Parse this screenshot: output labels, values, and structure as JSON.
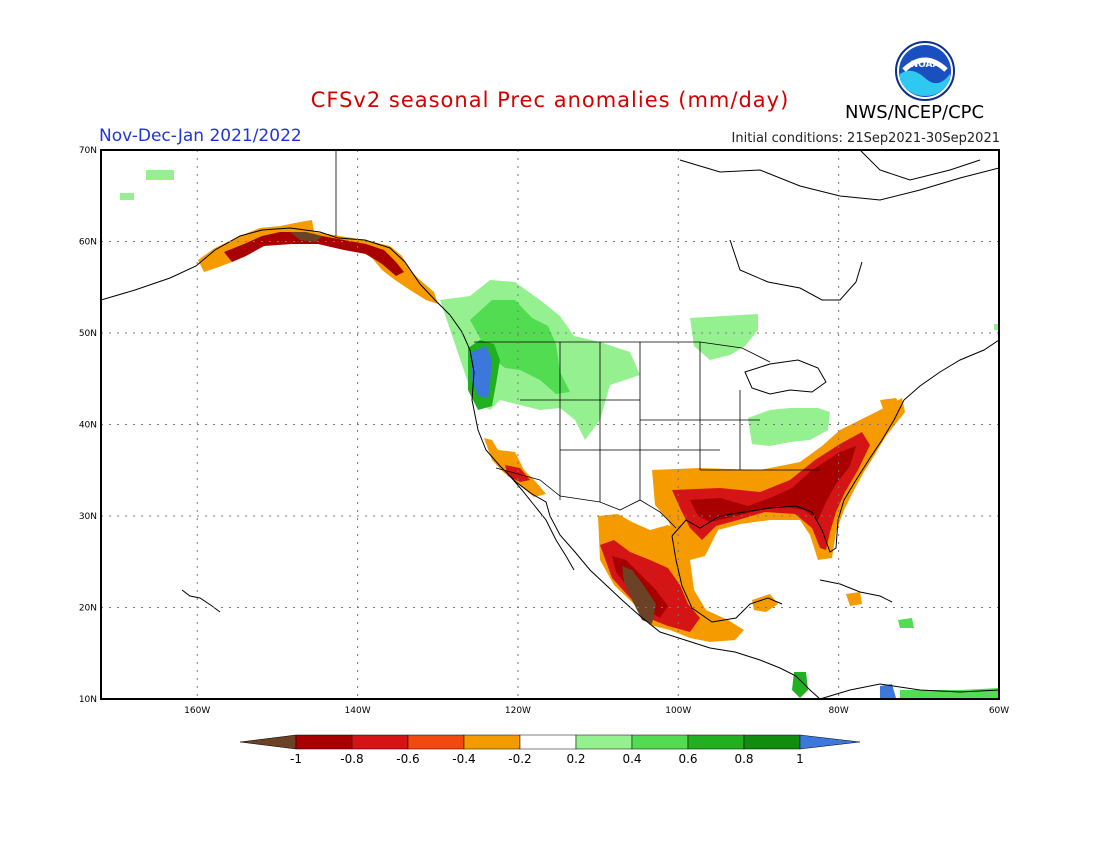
{
  "header": {
    "title": "CFSv2 seasonal Prec anomalies (mm/day)",
    "season": "Nov-Dec-Jan 2021/2022",
    "initial_conditions": "Initial conditions: 21Sep2021-30Sep2021",
    "agency": "NWS/NCEP/CPC",
    "logo_text": "NOAA"
  },
  "map": {
    "lon_range": [
      -172,
      -60
    ],
    "lat_range": [
      10,
      70
    ],
    "lat_ticks": [
      "10N",
      "20N",
      "30N",
      "40N",
      "50N",
      "60N",
      "70N"
    ],
    "lon_ticks": [
      "160W",
      "140W",
      "120W",
      "100W",
      "80W",
      "60W"
    ],
    "gridlines": "dotted"
  },
  "legend": {
    "labels": [
      "-1",
      "-0.8",
      "-0.6",
      "-0.4",
      "-0.2",
      "0.2",
      "0.4",
      "0.6",
      "0.8",
      "1"
    ],
    "colors": [
      "#6b4226",
      "#a80000",
      "#d51515",
      "#f04a0e",
      "#f59b00",
      "#ffffff",
      "#95f090",
      "#52dc52",
      "#20b020",
      "#108c10",
      "#3c78dc"
    ]
  },
  "anomaly_regions": [
    {
      "region": "Southeast US & Gulf Coast",
      "level": "-0.6 to -1"
    },
    {
      "region": "Western Mexico",
      "level": "-0.4 to -1"
    },
    {
      "region": "Southern Alaska coast",
      "level": "-0.4 to -0.8"
    },
    {
      "region": "Pacific Northwest coast",
      "level": "+1"
    },
    {
      "region": "Northern Rockies / Interior BC",
      "level": "+0.2 to +0.6"
    },
    {
      "region": "Ohio Valley",
      "level": "+0.2 to +0.4"
    },
    {
      "region": "Manitoba",
      "level": "+0.2 to +0.4"
    }
  ]
}
